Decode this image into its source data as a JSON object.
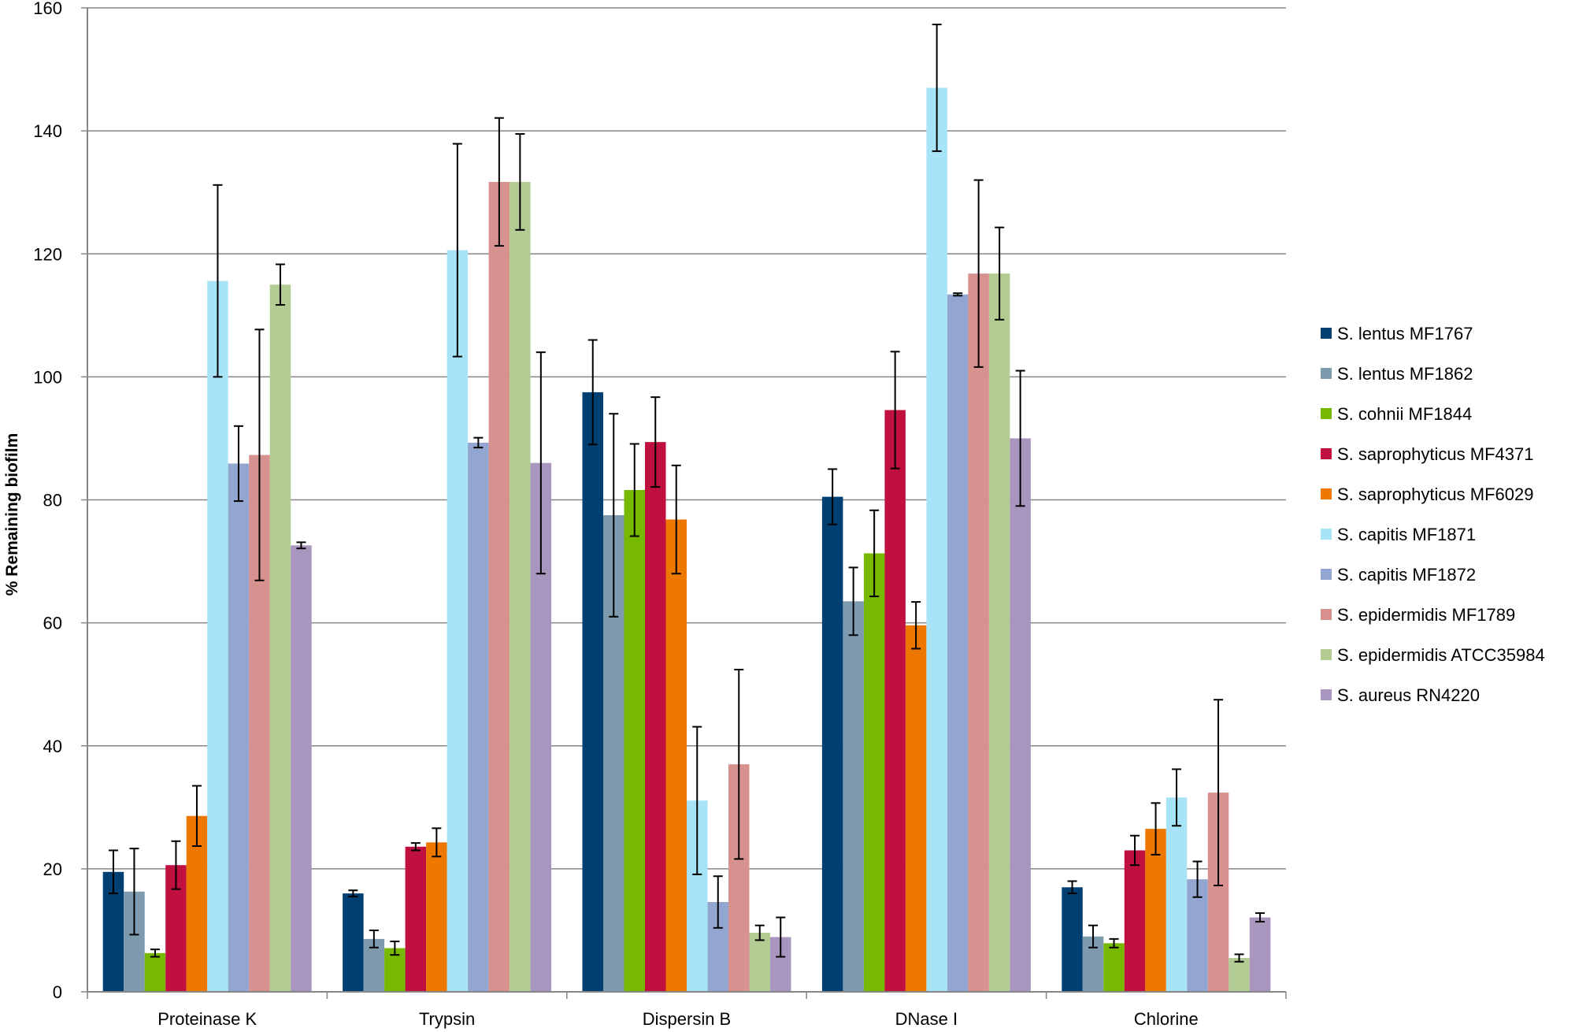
{
  "chart_data": {
    "type": "bar",
    "title": "",
    "xlabel": "",
    "ylabel": "% Remaining biofilm",
    "ylim": [
      0,
      160
    ],
    "yticks": [
      0,
      20,
      40,
      60,
      80,
      100,
      120,
      140,
      160
    ],
    "grid": true,
    "legend_position": "right",
    "categories": [
      "Proteinase K",
      "Trypsin",
      "Dispersin B",
      "DNase I",
      "Chlorine"
    ],
    "series": [
      {
        "name": "S. lentus MF1767",
        "color": "#003F72",
        "values": [
          19.5,
          16,
          97.5,
          80.5,
          17
        ],
        "errors": [
          3.5,
          0.5,
          8.5,
          4.5,
          1
        ]
      },
      {
        "name": "S. lentus MF1862",
        "color": "#7D9AAE",
        "values": [
          16.3,
          8.6,
          77.5,
          63.5,
          9
        ],
        "errors": [
          7,
          1.4,
          16.5,
          5.5,
          1.8
        ]
      },
      {
        "name": "S. cohnii MF1844",
        "color": "#77B800",
        "values": [
          6.3,
          7.1,
          81.6,
          71.3,
          7.9
        ],
        "errors": [
          0.6,
          1.1,
          7.5,
          7,
          0.7
        ]
      },
      {
        "name": "S. saprophyticus MF4371",
        "color": "#C0103F",
        "values": [
          20.6,
          23.6,
          89.4,
          94.6,
          23
        ],
        "errors": [
          3.9,
          0.6,
          7.3,
          9.5,
          2.4
        ]
      },
      {
        "name": "S. saprophyticus MF6029",
        "color": "#EE7700",
        "values": [
          28.6,
          24.3,
          76.8,
          59.6,
          26.5
        ],
        "errors": [
          4.9,
          2.3,
          8.8,
          3.8,
          4.2
        ]
      },
      {
        "name": "S. capitis MF1871",
        "color": "#A7E4F7",
        "values": [
          115.6,
          120.6,
          31.1,
          147,
          31.6
        ],
        "errors": [
          15.6,
          17.3,
          12,
          10.3,
          4.6
        ]
      },
      {
        "name": "S. capitis MF1872",
        "color": "#93A6D1",
        "values": [
          85.9,
          89.3,
          14.6,
          113.4,
          18.3
        ],
        "errors": [
          6.1,
          0.8,
          4.2,
          0.2,
          2.9
        ]
      },
      {
        "name": "S. epidermidis MF1789",
        "color": "#D79290",
        "values": [
          87.3,
          131.7,
          37,
          116.8,
          32.4
        ],
        "errors": [
          20.4,
          10.4,
          15.4,
          15.2,
          15.1
        ]
      },
      {
        "name": "S. epidermidis ATCC35984",
        "color": "#B3CC93",
        "values": [
          115,
          131.7,
          9.6,
          116.8,
          5.5
        ],
        "errors": [
          3.3,
          7.8,
          1.2,
          7.5,
          0.6
        ]
      },
      {
        "name": "S. aureus RN4220",
        "color": "#A896BF",
        "values": [
          72.6,
          86,
          8.9,
          90,
          12.1
        ],
        "errors": [
          0.5,
          18,
          3.2,
          11,
          0.7
        ]
      }
    ]
  }
}
